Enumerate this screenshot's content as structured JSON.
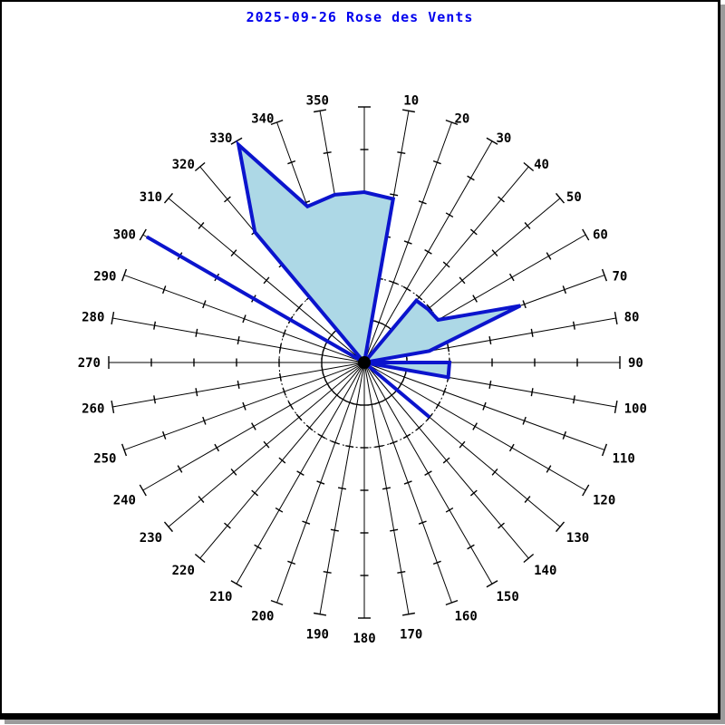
{
  "window": {
    "title": "2025-09-26 Rose des Vents"
  },
  "chart_data": {
    "type": "windrose-polar",
    "title": "2025-09-26 Rose des Vents",
    "radial_axis_labeled": false,
    "rings_total": 6,
    "dashed_circle_rings": [
      1,
      2
    ],
    "direction_step_deg": 10,
    "directions_deg": [
      0,
      10,
      20,
      30,
      40,
      50,
      60,
      70,
      80,
      90,
      100,
      110,
      120,
      130,
      140,
      150,
      160,
      170,
      180,
      190,
      200,
      210,
      220,
      230,
      240,
      250,
      260,
      270,
      280,
      290,
      300,
      310,
      320,
      330,
      340,
      350
    ],
    "values_rings": [
      4.0,
      3.9,
      0,
      0,
      1.9,
      1.95,
      2.0,
      3.9,
      1.55,
      2.0,
      2.0,
      0,
      0,
      2.0,
      0,
      0,
      0,
      0,
      0,
      0,
      0,
      0,
      0,
      0,
      0,
      0,
      0,
      0,
      0,
      0,
      5.9,
      0,
      4.0,
      5.9,
      3.9,
      4.0
    ],
    "petals": [
      {
        "label": "sector-320-010",
        "points": [
          [
            320,
            4.0
          ],
          [
            330,
            5.9
          ],
          [
            340,
            3.9
          ],
          [
            350,
            4.0
          ],
          [
            0,
            4.0
          ],
          [
            10,
            3.9
          ]
        ]
      },
      {
        "label": "sector-040-080",
        "points": [
          [
            40,
            1.9
          ],
          [
            50,
            1.95
          ],
          [
            60,
            2.0
          ],
          [
            70,
            3.9
          ],
          [
            80,
            1.55
          ]
        ]
      },
      {
        "label": "sector-090-100",
        "points": [
          [
            90,
            2.0
          ],
          [
            100,
            2.0
          ]
        ]
      },
      {
        "label": "spike-130",
        "points": [
          [
            130,
            2.0
          ]
        ]
      },
      {
        "label": "spike-300",
        "points": [
          [
            300,
            5.9
          ]
        ]
      }
    ],
    "direction_labels": [
      "10",
      "20",
      "30",
      "40",
      "50",
      "60",
      "70",
      "80",
      "90",
      "100",
      "110",
      "120",
      "130",
      "140",
      "150",
      "160",
      "170",
      "180",
      "190",
      "200",
      "210",
      "220",
      "230",
      "240",
      "250",
      "260",
      "270",
      "280",
      "290",
      "300",
      "310",
      "320",
      "330",
      "340",
      "350"
    ],
    "colors": {
      "title": "#0000ee",
      "petal_fill": "#add8e6",
      "petal_stroke": "#0b14cd",
      "grid": "#000000",
      "label": "#000000",
      "frame": "#000000",
      "shadow": "#9b9b9b"
    }
  }
}
